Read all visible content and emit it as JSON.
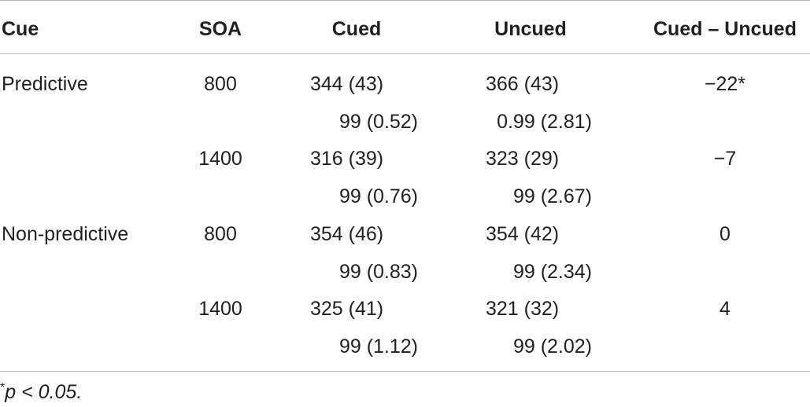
{
  "table": {
    "headers": {
      "cue": "Cue",
      "soa": "SOA",
      "cued": "Cued",
      "uncued": "Uncued",
      "diff": "Cued – Uncued"
    },
    "rows": [
      {
        "cue": "Predictive",
        "soa": "800",
        "cued": "344 (43)",
        "uncued": "366 (43)",
        "diff": "−22*"
      },
      {
        "cue": "",
        "soa": "",
        "cued": "99 (0.52)",
        "uncued": "0.99 (2.81)",
        "diff": ""
      },
      {
        "cue": "",
        "soa": "1400",
        "cued": "316 (39)",
        "uncued": "323 (29)",
        "diff": "−7"
      },
      {
        "cue": "",
        "soa": "",
        "cued": "99 (0.76)",
        "uncued": "99 (2.67)",
        "diff": ""
      },
      {
        "cue": "Non-predictive",
        "soa": "800",
        "cued": "354 (46)",
        "uncued": "354 (42)",
        "diff": "0"
      },
      {
        "cue": "",
        "soa": "",
        "cued": "99 (0.83)",
        "uncued": "99 (2.34)",
        "diff": ""
      },
      {
        "cue": "",
        "soa": "1400",
        "cued": "325 (41)",
        "uncued": "321 (32)",
        "diff": "4"
      },
      {
        "cue": "",
        "soa": "",
        "cued": "99 (1.12)",
        "uncued": "99 (2.02)",
        "diff": ""
      }
    ]
  },
  "footnote": {
    "star": "*",
    "text": "p < 0.05."
  }
}
